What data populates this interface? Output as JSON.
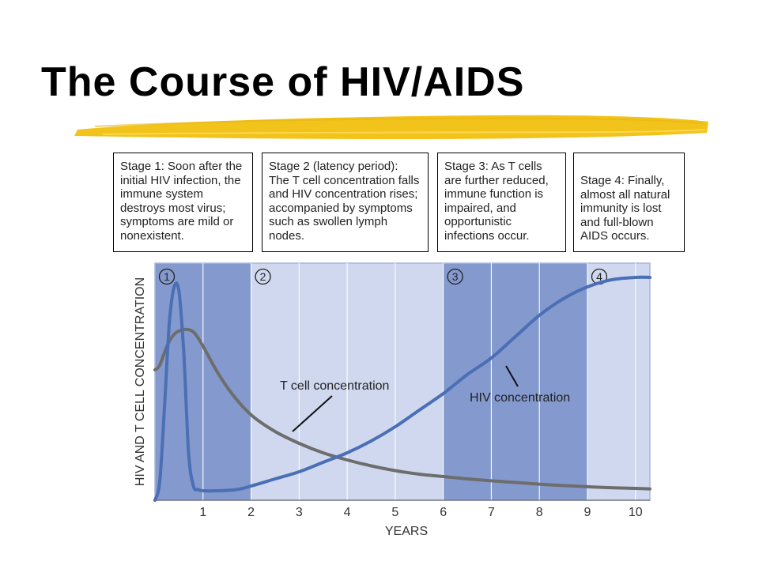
{
  "slide": {
    "title": "The Course of HIV/AIDS",
    "accent_color": "#F2C31A"
  },
  "stages": [
    "Stage 1: Soon after the initial HIV infection, the immune system destroys most virus; symptoms are mild or nonexistent.",
    "Stage 2 (latency period): The T cell concentration falls and HIV concentration rises; accompanied by symptoms such as swollen lymph nodes.",
    "Stage 3: As T cells are further reduced, immune function is impaired, and opportunistic infections occur.",
    "Stage 4: Finally, almost all natural immunity is lost and full-blown AIDS occurs."
  ],
  "chart_data": {
    "type": "line",
    "title": "",
    "xlabel": "YEARS",
    "ylabel": "HIV AND T CELL CONCENTRATION",
    "xlim": [
      0,
      10.3
    ],
    "ylim": [
      0,
      1
    ],
    "x_ticks": [
      "1",
      "2",
      "3",
      "4",
      "5",
      "6",
      "7",
      "8",
      "9",
      "10"
    ],
    "y_ticks": [],
    "grid": "vertical lines at each year",
    "stage_bands": [
      {
        "label": "1",
        "start": 0,
        "end": 2,
        "shade": "dark"
      },
      {
        "label": "2",
        "start": 2,
        "end": 6,
        "shade": "light"
      },
      {
        "label": "3",
        "start": 6,
        "end": 9,
        "shade": "dark"
      },
      {
        "label": "4",
        "start": 9,
        "end": 10.3,
        "shade": "light"
      }
    ],
    "series": [
      {
        "name": "T cell concentration",
        "color": "#6d6d6d",
        "x": [
          0,
          0.1,
          0.25,
          0.4,
          0.6,
          0.8,
          1.0,
          1.3,
          1.6,
          2.0,
          2.5,
          3.0,
          3.5,
          4.0,
          4.5,
          5.0,
          5.5,
          6.0,
          6.5,
          7.0,
          7.5,
          8.0,
          8.5,
          9.0,
          9.5,
          10.0,
          10.3
        ],
        "values": [
          0.55,
          0.57,
          0.65,
          0.7,
          0.72,
          0.71,
          0.65,
          0.54,
          0.45,
          0.36,
          0.29,
          0.24,
          0.2,
          0.17,
          0.145,
          0.125,
          0.11,
          0.1,
          0.09,
          0.082,
          0.075,
          0.068,
          0.062,
          0.057,
          0.053,
          0.05,
          0.048
        ]
      },
      {
        "name": "HIV concentration",
        "color": "#4a6fb5",
        "x": [
          0,
          0.1,
          0.2,
          0.3,
          0.4,
          0.5,
          0.6,
          0.7,
          0.8,
          0.9,
          1.0,
          1.3,
          1.7,
          2.0,
          2.5,
          3.0,
          3.5,
          4.0,
          4.5,
          5.0,
          5.5,
          6.0,
          6.5,
          7.0,
          7.5,
          8.0,
          8.5,
          9.0,
          9.5,
          10.0,
          10.3
        ],
        "values": [
          0.0,
          0.08,
          0.4,
          0.75,
          0.9,
          0.88,
          0.62,
          0.2,
          0.06,
          0.045,
          0.04,
          0.04,
          0.045,
          0.06,
          0.09,
          0.12,
          0.16,
          0.2,
          0.25,
          0.31,
          0.38,
          0.45,
          0.53,
          0.6,
          0.69,
          0.78,
          0.85,
          0.9,
          0.93,
          0.94,
          0.94
        ]
      }
    ],
    "annotations": [
      "T cell concentration",
      "HIV concentration"
    ],
    "colors": {
      "band_dark": "#8499cd",
      "band_light": "#cfd8ee",
      "plot_border": "#aab5d8"
    }
  }
}
